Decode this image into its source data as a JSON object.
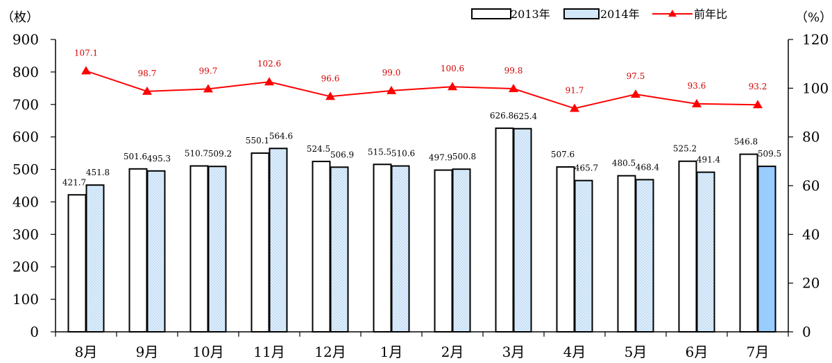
{
  "chart_data": {
    "type": "bar",
    "categories": [
      "8月",
      "9月",
      "10月",
      "11月",
      "12月",
      "1月",
      "2月",
      "3月",
      "4月",
      "5月",
      "6月",
      "7月"
    ],
    "series": [
      {
        "name": "2013年",
        "kind": "bar",
        "axis": "left",
        "values": [
          421.7,
          501.6,
          510.7,
          550.1,
          524.5,
          515.5,
          497.9,
          626.8,
          507.6,
          480.5,
          525.2,
          546.8
        ],
        "labels": [
          "421.7",
          "501.6",
          "510.7",
          "550.1",
          "524.5",
          "515.5",
          "497.9",
          "626.8",
          "507.6",
          "480.5",
          "525.2",
          "546.8"
        ]
      },
      {
        "name": "2014年",
        "kind": "bar",
        "axis": "left",
        "values": [
          451.8,
          495.3,
          509.2,
          564.6,
          506.9,
          510.6,
          500.8,
          625.4,
          465.7,
          468.4,
          491.4,
          509.5
        ],
        "labels": [
          "451.8",
          "495.3",
          "509.2",
          "564.6",
          "506.9",
          "510.6",
          "500.8",
          "625.4",
          "465.7",
          "468.4",
          "491.4",
          "509.5"
        ]
      },
      {
        "name": "前年比",
        "kind": "line",
        "axis": "right",
        "values": [
          107.1,
          98.7,
          99.7,
          102.6,
          96.6,
          99.0,
          100.6,
          99.8,
          91.7,
          97.5,
          93.6,
          93.2
        ],
        "labels": [
          "107.1",
          "98.7",
          "99.7",
          "102.6",
          "96.6",
          "99.0",
          "100.6",
          "99.8",
          "91.7",
          "97.5",
          "93.6",
          "93.2"
        ]
      }
    ],
    "left_axis": {
      "unit": "（枚）",
      "ylim": [
        0,
        900
      ],
      "ticks": [
        0,
        100,
        200,
        300,
        400,
        500,
        600,
        700,
        800,
        900
      ]
    },
    "right_axis": {
      "unit": "（%）",
      "ylim": [
        0,
        120
      ],
      "ticks": [
        0,
        20,
        40,
        60,
        80,
        100,
        120
      ]
    },
    "legend_position": "top-right",
    "grid": false,
    "colors": {
      "bar2013": "#ffffff",
      "bar2014": "#bcd9f2",
      "bar2014_solid": "#99ccff",
      "line": "#ff0000",
      "axis": "#000000"
    }
  }
}
